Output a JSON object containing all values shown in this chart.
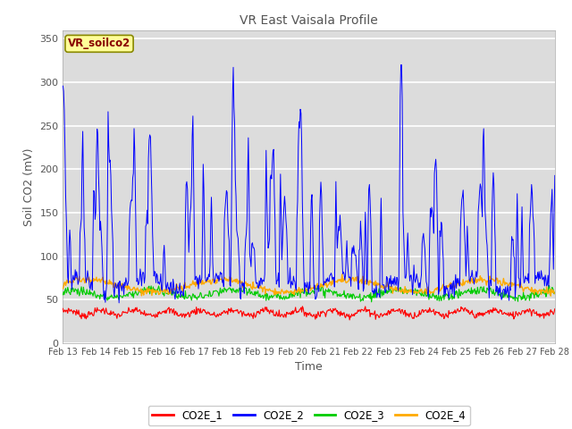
{
  "title": "VR East Vaisala Profile",
  "xlabel": "Time",
  "ylabel": "Soil CO2 (mV)",
  "annotation": "VR_soilco2",
  "ylim": [
    0,
    360
  ],
  "yticks": [
    0,
    50,
    100,
    150,
    200,
    250,
    300,
    350
  ],
  "date_labels": [
    "Feb 13",
    "Feb 14",
    "Feb 15",
    "Feb 16",
    "Feb 17",
    "Feb 18",
    "Feb 19",
    "Feb 20",
    "Feb 21",
    "Feb 22",
    "Feb 23",
    "Feb 24",
    "Feb 25",
    "Feb 26",
    "Feb 27",
    "Feb 28"
  ],
  "n_days": 15,
  "colors": {
    "CO2E_1": "#ff0000",
    "CO2E_2": "#0000ff",
    "CO2E_3": "#00cc00",
    "CO2E_4": "#ffaa00"
  },
  "legend_labels": [
    "CO2E_1",
    "CO2E_2",
    "CO2E_3",
    "CO2E_4"
  ],
  "fig_bg_color": "#ffffff",
  "plot_bg_color": "#dcdcdc",
  "grid_color": "#ffffff",
  "annotation_box_color": "#ffff99",
  "annotation_text_color": "#880000",
  "annotation_border_color": "#888800",
  "title_color": "#555555",
  "axes_label_color": "#555555",
  "tick_label_color": "#555555"
}
